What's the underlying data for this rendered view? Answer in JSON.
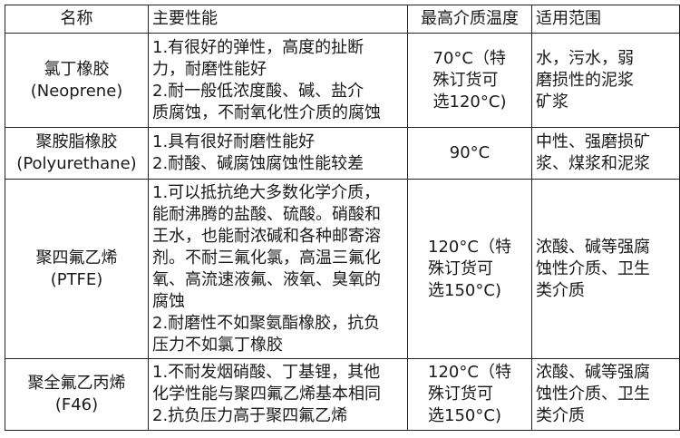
{
  "headers": [
    "名称",
    "主要性能",
    "最高介质温度",
    "适用范围"
  ],
  "rows": [
    {
      "name": "氯丁橡胶\n(Neoprene)",
      "performance": "1.有很好的弹性，高度的扯断\n力，耐磨性能好\n2.耐一般低浓度酸、碱、盐介\n质腐蚀，不耐氧化性介质的腐蚀",
      "max_temp": "70°C（特\n殊订货可\n选120°C)",
      "application": "水，污水，弱\n磨损性的泥浆\n矿浆"
    },
    {
      "name": "聚胺脂橡胶\n(Polyurethane)",
      "performance": "1.具有很好耐磨性能好\n2.耐酸、碱腐蚀腐蚀性能较差",
      "max_temp": "90°C",
      "application": "中性、强磨损矿\n浆、煤浆和泥浆"
    },
    {
      "name": "聚四氟乙烯\n(PTFE)",
      "performance": "1.可以抵抗绝大多数化学介质，\n能耐沸腾的盐酸、硫酸。硝酸和\n王水，也能耐浓碱和各种邮寄溶\n剂。不耐三氟化氯，高温三氟化\n氧、高流速液氟、液氧、臭氧的\n腐蚀\n2.耐磨性不如聚氨酯橡胶，抗负\n压力不如氯丁橡胶",
      "max_temp": "120°C（特\n殊订货可\n选150°C)",
      "application": "浓酸、碱等强腐\n蚀性介质、卫生\n类介质"
    },
    {
      "name": "聚全氟乙丙烯\n(F46)",
      "performance": "1.不耐发烟硝酸、丁基锂，其他\n化学性能与聚四氟乙烯基本相同\n2.抗负压力高于聚四氟乙烯",
      "max_temp": "120°C（特\n殊订货可\n选150°C)",
      "application": "浓酸、碱等强腐\n蚀性介质、卫生\n类介质"
    }
  ]
}
